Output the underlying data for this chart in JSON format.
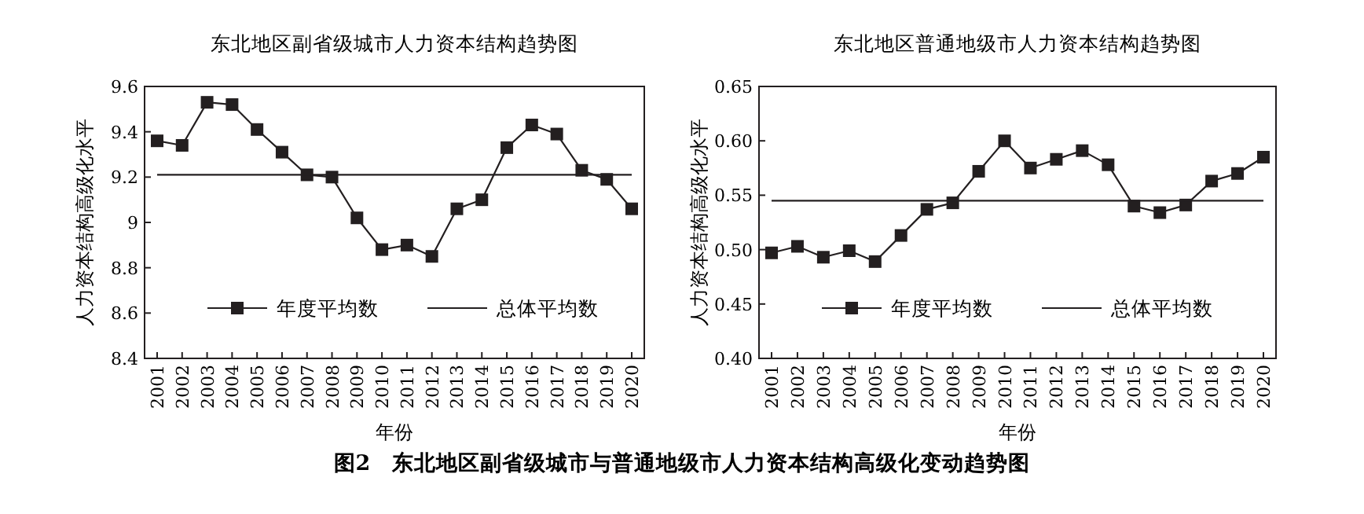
{
  "chart_data": [
    {
      "type": "line",
      "title": "东北地区副省级城市人力资本结构趋势图",
      "xlabel": "年份",
      "ylabel": "人力资本结构高级化水平",
      "categories": [
        "2001",
        "2002",
        "2003",
        "2004",
        "2005",
        "2006",
        "2007",
        "2008",
        "2009",
        "2010",
        "2011",
        "2012",
        "2013",
        "2014",
        "2015",
        "2016",
        "2017",
        "2018",
        "2019",
        "2020"
      ],
      "series": [
        {
          "name": "年度平均数",
          "color": "#231f20",
          "marker": "square",
          "values": [
            9.36,
            9.34,
            9.53,
            9.52,
            9.41,
            9.31,
            9.21,
            9.2,
            9.02,
            8.88,
            8.9,
            8.85,
            9.06,
            9.1,
            9.33,
            9.43,
            9.39,
            9.23,
            9.19,
            9.06
          ]
        },
        {
          "name": "总体平均数",
          "color": "#231f20",
          "marker": "none",
          "values": [
            9.21,
            9.21,
            9.21,
            9.21,
            9.21,
            9.21,
            9.21,
            9.21,
            9.21,
            9.21,
            9.21,
            9.21,
            9.21,
            9.21,
            9.21,
            9.21,
            9.21,
            9.21,
            9.21,
            9.21
          ]
        }
      ],
      "ylim": [
        8.4,
        9.6
      ],
      "yticks": [
        8.4,
        8.6,
        8.8,
        {
          "value": 9,
          "label": "9"
        },
        9.2,
        9.4,
        9.6
      ],
      "legend": "bottom",
      "grid": false,
      "annotations": [
        "图2　东北地区副省级城市与普通地级市人力资本结构高级化变动趋势图"
      ]
    },
    {
      "type": "line",
      "title": "东北地区普通地级市人力资本结构趋势图",
      "xlabel": "年份",
      "ylabel": "人力资本结构高级化水平",
      "categories": [
        "2001",
        "2002",
        "2003",
        "2004",
        "2005",
        "2006",
        "2007",
        "2008",
        "2009",
        "2010",
        "2011",
        "2012",
        "2013",
        "2014",
        "2015",
        "2016",
        "2017",
        "2018",
        "2019",
        "2020"
      ],
      "series": [
        {
          "name": "年度平均数",
          "color": "#231f20",
          "marker": "square",
          "values": [
            0.497,
            0.503,
            0.493,
            0.499,
            0.489,
            0.513,
            0.537,
            0.543,
            0.572,
            0.6,
            0.575,
            0.583,
            0.591,
            0.578,
            0.54,
            0.534,
            0.541,
            0.563,
            0.57,
            0.585
          ]
        },
        {
          "name": "总体平均数",
          "color": "#231f20",
          "marker": "none",
          "values": [
            0.545,
            0.545,
            0.545,
            0.545,
            0.545,
            0.545,
            0.545,
            0.545,
            0.545,
            0.545,
            0.545,
            0.545,
            0.545,
            0.545,
            0.545,
            0.545,
            0.545,
            0.545,
            0.545,
            0.545
          ]
        }
      ],
      "ylim": [
        0.4,
        0.65
      ],
      "yticks": [
        {
          "value": 0.4,
          "label": "0.40"
        },
        {
          "value": 0.45,
          "label": "0.45"
        },
        {
          "value": 0.5,
          "label": "0.50"
        },
        {
          "value": 0.55,
          "label": "0.55"
        },
        {
          "value": 0.6,
          "label": "0.60"
        },
        {
          "value": 0.65,
          "label": "0.65"
        }
      ],
      "legend": "bottom",
      "grid": false
    }
  ]
}
